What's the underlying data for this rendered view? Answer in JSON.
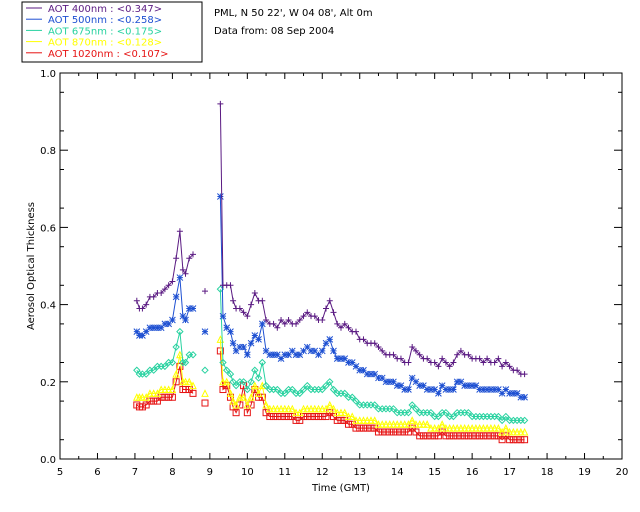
{
  "colors": {
    "axes": "#000000",
    "background": "#ffffff"
  },
  "info": {
    "line1": "PML, N 50 22', W 04 08', Alt 0m",
    "line2": "Data from: 08 Sep 2004"
  },
  "chart_data": {
    "type": "line",
    "title": "",
    "xlabel": "Time (GMT)",
    "ylabel": "Aerosol Optical Thickness",
    "xlim": [
      5,
      20
    ],
    "ylim": [
      0.0,
      1.0
    ],
    "xticks": [
      "5",
      "6",
      "7",
      "8",
      "9",
      "10",
      "11",
      "12",
      "13",
      "14",
      "15",
      "16",
      "17",
      "18",
      "19",
      "20"
    ],
    "yticks": [
      "0.0",
      "0.2",
      "0.4",
      "0.6",
      "0.8",
      "1.0"
    ],
    "grid": false,
    "legend_position": "top-left",
    "series": [
      {
        "name": "AOT  400nm : <0.347>",
        "color": "#5a1a82",
        "marker": "plus",
        "x": [
          7.05,
          7.12,
          7.2,
          7.3,
          7.4,
          7.5,
          7.6,
          7.7,
          7.8,
          7.9,
          8.0,
          8.1,
          8.2,
          8.28,
          8.35,
          8.45,
          8.55,
          8.87,
          9.28,
          9.35,
          9.45,
          9.55,
          9.62,
          9.7,
          9.8,
          9.9,
          10.0,
          10.1,
          10.2,
          10.3,
          10.4,
          10.5,
          10.6,
          10.7,
          10.8,
          10.9,
          11.0,
          11.1,
          11.2,
          11.3,
          11.4,
          11.5,
          11.6,
          11.7,
          11.8,
          11.9,
          12.0,
          12.1,
          12.2,
          12.3,
          12.4,
          12.5,
          12.6,
          12.7,
          12.8,
          12.9,
          13.0,
          13.1,
          13.2,
          13.3,
          13.4,
          13.5,
          13.6,
          13.7,
          13.8,
          13.9,
          14.0,
          14.1,
          14.2,
          14.3,
          14.4,
          14.5,
          14.6,
          14.7,
          14.8,
          14.9,
          15.0,
          15.1,
          15.2,
          15.3,
          15.4,
          15.5,
          15.6,
          15.7,
          15.8,
          15.9,
          16.0,
          16.1,
          16.2,
          16.3,
          16.4,
          16.5,
          16.6,
          16.7,
          16.8,
          16.9,
          17.0,
          17.1,
          17.2,
          17.3,
          17.4
        ],
        "y": [
          0.41,
          0.39,
          0.39,
          0.4,
          0.42,
          0.42,
          0.43,
          0.43,
          0.44,
          0.45,
          0.46,
          0.52,
          0.59,
          0.49,
          0.48,
          0.52,
          0.53,
          0.435,
          0.92,
          0.45,
          0.45,
          0.45,
          0.41,
          0.39,
          0.39,
          0.38,
          0.37,
          0.4,
          0.43,
          0.41,
          0.41,
          0.36,
          0.35,
          0.35,
          0.34,
          0.36,
          0.35,
          0.36,
          0.35,
          0.35,
          0.36,
          0.37,
          0.38,
          0.37,
          0.37,
          0.36,
          0.36,
          0.39,
          0.41,
          0.38,
          0.35,
          0.34,
          0.35,
          0.34,
          0.33,
          0.33,
          0.31,
          0.31,
          0.3,
          0.3,
          0.3,
          0.29,
          0.28,
          0.27,
          0.27,
          0.27,
          0.26,
          0.26,
          0.25,
          0.25,
          0.29,
          0.28,
          0.27,
          0.26,
          0.26,
          0.25,
          0.25,
          0.24,
          0.26,
          0.25,
          0.24,
          0.25,
          0.27,
          0.28,
          0.27,
          0.27,
          0.26,
          0.26,
          0.26,
          0.25,
          0.26,
          0.25,
          0.25,
          0.26,
          0.24,
          0.25,
          0.24,
          0.23,
          0.23,
          0.22,
          0.22
        ]
      },
      {
        "name": "AOT  500nm : <0.258>",
        "color": "#1e50d2",
        "marker": "asterisk",
        "x": [
          7.05,
          7.12,
          7.2,
          7.3,
          7.4,
          7.5,
          7.6,
          7.7,
          7.8,
          7.9,
          8.0,
          8.1,
          8.2,
          8.28,
          8.35,
          8.45,
          8.55,
          8.87,
          9.28,
          9.35,
          9.45,
          9.55,
          9.62,
          9.7,
          9.8,
          9.9,
          10.0,
          10.1,
          10.2,
          10.3,
          10.4,
          10.5,
          10.6,
          10.7,
          10.8,
          10.9,
          11.0,
          11.1,
          11.2,
          11.3,
          11.4,
          11.5,
          11.6,
          11.7,
          11.8,
          11.9,
          12.0,
          12.1,
          12.2,
          12.3,
          12.4,
          12.5,
          12.6,
          12.7,
          12.8,
          12.9,
          13.0,
          13.1,
          13.2,
          13.3,
          13.4,
          13.5,
          13.6,
          13.7,
          13.8,
          13.9,
          14.0,
          14.1,
          14.2,
          14.3,
          14.4,
          14.5,
          14.6,
          14.7,
          14.8,
          14.9,
          15.0,
          15.1,
          15.2,
          15.3,
          15.4,
          15.5,
          15.6,
          15.7,
          15.8,
          15.9,
          16.0,
          16.1,
          16.2,
          16.3,
          16.4,
          16.5,
          16.6,
          16.7,
          16.8,
          16.9,
          17.0,
          17.1,
          17.2,
          17.3,
          17.4
        ],
        "y": [
          0.33,
          0.32,
          0.32,
          0.33,
          0.34,
          0.34,
          0.34,
          0.34,
          0.35,
          0.35,
          0.36,
          0.42,
          0.47,
          0.37,
          0.36,
          0.39,
          0.39,
          0.33,
          0.68,
          0.37,
          0.34,
          0.33,
          0.3,
          0.28,
          0.29,
          0.29,
          0.27,
          0.3,
          0.32,
          0.31,
          0.35,
          0.28,
          0.27,
          0.27,
          0.27,
          0.26,
          0.27,
          0.27,
          0.28,
          0.27,
          0.27,
          0.28,
          0.29,
          0.28,
          0.28,
          0.27,
          0.28,
          0.3,
          0.31,
          0.28,
          0.26,
          0.26,
          0.26,
          0.25,
          0.25,
          0.24,
          0.23,
          0.23,
          0.22,
          0.22,
          0.22,
          0.21,
          0.21,
          0.2,
          0.2,
          0.2,
          0.19,
          0.19,
          0.18,
          0.18,
          0.21,
          0.2,
          0.19,
          0.19,
          0.18,
          0.18,
          0.18,
          0.17,
          0.19,
          0.18,
          0.18,
          0.18,
          0.2,
          0.2,
          0.19,
          0.19,
          0.19,
          0.19,
          0.18,
          0.18,
          0.18,
          0.18,
          0.18,
          0.18,
          0.17,
          0.18,
          0.17,
          0.17,
          0.17,
          0.16,
          0.16
        ]
      },
      {
        "name": "AOT  675nm : <0.175>",
        "color": "#28d2a0",
        "marker": "diamond",
        "x": [
          7.05,
          7.12,
          7.2,
          7.3,
          7.4,
          7.5,
          7.6,
          7.7,
          7.8,
          7.9,
          8.0,
          8.1,
          8.2,
          8.28,
          8.35,
          8.45,
          8.55,
          8.87,
          9.28,
          9.35,
          9.45,
          9.55,
          9.62,
          9.7,
          9.8,
          9.9,
          10.0,
          10.1,
          10.2,
          10.3,
          10.4,
          10.5,
          10.6,
          10.7,
          10.8,
          10.9,
          11.0,
          11.1,
          11.2,
          11.3,
          11.4,
          11.5,
          11.6,
          11.7,
          11.8,
          11.9,
          12.0,
          12.1,
          12.2,
          12.3,
          12.4,
          12.5,
          12.6,
          12.7,
          12.8,
          12.9,
          13.0,
          13.1,
          13.2,
          13.3,
          13.4,
          13.5,
          13.6,
          13.7,
          13.8,
          13.9,
          14.0,
          14.1,
          14.2,
          14.3,
          14.4,
          14.5,
          14.6,
          14.7,
          14.8,
          14.9,
          15.0,
          15.1,
          15.2,
          15.3,
          15.4,
          15.5,
          15.6,
          15.7,
          15.8,
          15.9,
          16.0,
          16.1,
          16.2,
          16.3,
          16.4,
          16.5,
          16.6,
          16.7,
          16.8,
          16.9,
          17.0,
          17.1,
          17.2,
          17.3,
          17.4
        ],
        "y": [
          0.23,
          0.22,
          0.22,
          0.22,
          0.23,
          0.23,
          0.24,
          0.24,
          0.24,
          0.25,
          0.25,
          0.29,
          0.33,
          0.25,
          0.25,
          0.27,
          0.27,
          0.23,
          0.44,
          0.25,
          0.23,
          0.22,
          0.2,
          0.19,
          0.2,
          0.2,
          0.18,
          0.2,
          0.23,
          0.21,
          0.25,
          0.19,
          0.18,
          0.18,
          0.18,
          0.17,
          0.17,
          0.18,
          0.18,
          0.17,
          0.17,
          0.18,
          0.19,
          0.18,
          0.18,
          0.18,
          0.18,
          0.19,
          0.2,
          0.18,
          0.17,
          0.17,
          0.17,
          0.16,
          0.16,
          0.15,
          0.14,
          0.14,
          0.14,
          0.14,
          0.14,
          0.13,
          0.13,
          0.13,
          0.13,
          0.13,
          0.12,
          0.12,
          0.12,
          0.12,
          0.14,
          0.13,
          0.12,
          0.12,
          0.12,
          0.12,
          0.11,
          0.11,
          0.12,
          0.12,
          0.11,
          0.11,
          0.12,
          0.12,
          0.12,
          0.12,
          0.11,
          0.11,
          0.11,
          0.11,
          0.11,
          0.11,
          0.11,
          0.11,
          0.1,
          0.11,
          0.1,
          0.1,
          0.1,
          0.1,
          0.1
        ]
      },
      {
        "name": "AOT  870nm : <0.128>",
        "color": "#ffff00",
        "marker": "triangle",
        "x": [
          7.05,
          7.12,
          7.2,
          7.3,
          7.4,
          7.5,
          7.6,
          7.7,
          7.8,
          7.9,
          8.0,
          8.1,
          8.2,
          8.28,
          8.35,
          8.45,
          8.55,
          8.87,
          9.28,
          9.35,
          9.45,
          9.55,
          9.62,
          9.7,
          9.8,
          9.9,
          10.0,
          10.1,
          10.2,
          10.3,
          10.4,
          10.5,
          10.6,
          10.7,
          10.8,
          10.9,
          11.0,
          11.1,
          11.2,
          11.3,
          11.4,
          11.5,
          11.6,
          11.7,
          11.8,
          11.9,
          12.0,
          12.1,
          12.2,
          12.3,
          12.4,
          12.5,
          12.6,
          12.7,
          12.8,
          12.9,
          13.0,
          13.1,
          13.2,
          13.3,
          13.4,
          13.5,
          13.6,
          13.7,
          13.8,
          13.9,
          14.0,
          14.1,
          14.2,
          14.3,
          14.4,
          14.5,
          14.6,
          14.7,
          14.8,
          14.9,
          15.0,
          15.1,
          15.2,
          15.3,
          15.4,
          15.5,
          15.6,
          15.7,
          15.8,
          15.9,
          16.0,
          16.1,
          16.2,
          16.3,
          16.4,
          16.5,
          16.6,
          16.7,
          16.8,
          16.9,
          17.0,
          17.1,
          17.2,
          17.3,
          17.4
        ],
        "y": [
          0.16,
          0.16,
          0.16,
          0.16,
          0.17,
          0.17,
          0.17,
          0.18,
          0.18,
          0.18,
          0.18,
          0.22,
          0.27,
          0.2,
          0.2,
          0.2,
          0.19,
          0.17,
          0.31,
          0.2,
          0.2,
          0.17,
          0.15,
          0.14,
          0.16,
          0.16,
          0.14,
          0.16,
          0.19,
          0.17,
          0.19,
          0.14,
          0.13,
          0.13,
          0.13,
          0.13,
          0.13,
          0.13,
          0.13,
          0.12,
          0.12,
          0.13,
          0.13,
          0.13,
          0.13,
          0.13,
          0.13,
          0.13,
          0.14,
          0.13,
          0.12,
          0.12,
          0.12,
          0.11,
          0.11,
          0.1,
          0.1,
          0.1,
          0.1,
          0.1,
          0.1,
          0.09,
          0.09,
          0.09,
          0.09,
          0.09,
          0.09,
          0.09,
          0.09,
          0.09,
          0.1,
          0.09,
          0.09,
          0.09,
          0.09,
          0.08,
          0.08,
          0.08,
          0.09,
          0.08,
          0.08,
          0.08,
          0.08,
          0.08,
          0.08,
          0.08,
          0.08,
          0.08,
          0.08,
          0.08,
          0.08,
          0.08,
          0.08,
          0.08,
          0.07,
          0.08,
          0.07,
          0.07,
          0.07,
          0.07,
          0.07
        ]
      },
      {
        "name": "AOT 1020nm : <0.107>",
        "color": "#e61414",
        "marker": "square",
        "x": [
          7.05,
          7.12,
          7.2,
          7.3,
          7.4,
          7.5,
          7.6,
          7.7,
          7.8,
          7.9,
          8.0,
          8.1,
          8.2,
          8.28,
          8.35,
          8.45,
          8.55,
          8.87,
          9.28,
          9.35,
          9.45,
          9.55,
          9.62,
          9.7,
          9.8,
          9.9,
          10.0,
          10.1,
          10.2,
          10.3,
          10.4,
          10.5,
          10.6,
          10.7,
          10.8,
          10.9,
          11.0,
          11.1,
          11.2,
          11.3,
          11.4,
          11.5,
          11.6,
          11.7,
          11.8,
          11.9,
          12.0,
          12.1,
          12.2,
          12.3,
          12.4,
          12.5,
          12.6,
          12.7,
          12.8,
          12.9,
          13.0,
          13.1,
          13.2,
          13.3,
          13.4,
          13.5,
          13.6,
          13.7,
          13.8,
          13.9,
          14.0,
          14.1,
          14.2,
          14.3,
          14.4,
          14.5,
          14.6,
          14.7,
          14.8,
          14.9,
          15.0,
          15.1,
          15.2,
          15.3,
          15.4,
          15.5,
          15.6,
          15.7,
          15.8,
          15.9,
          16.0,
          16.1,
          16.2,
          16.3,
          16.4,
          16.5,
          16.6,
          16.7,
          16.8,
          16.9,
          17.0,
          17.1,
          17.2,
          17.3,
          17.4
        ],
        "y": [
          0.14,
          0.135,
          0.135,
          0.14,
          0.15,
          0.15,
          0.15,
          0.16,
          0.16,
          0.16,
          0.16,
          0.2,
          0.24,
          0.18,
          0.18,
          0.18,
          0.17,
          0.145,
          0.28,
          0.18,
          0.19,
          0.16,
          0.135,
          0.12,
          0.14,
          0.19,
          0.12,
          0.14,
          0.18,
          0.16,
          0.16,
          0.12,
          0.11,
          0.11,
          0.11,
          0.11,
          0.11,
          0.11,
          0.11,
          0.1,
          0.1,
          0.11,
          0.11,
          0.11,
          0.11,
          0.11,
          0.11,
          0.11,
          0.12,
          0.11,
          0.1,
          0.1,
          0.1,
          0.09,
          0.09,
          0.08,
          0.08,
          0.08,
          0.08,
          0.08,
          0.08,
          0.07,
          0.07,
          0.07,
          0.07,
          0.07,
          0.07,
          0.07,
          0.07,
          0.07,
          0.08,
          0.07,
          0.06,
          0.06,
          0.06,
          0.06,
          0.06,
          0.06,
          0.07,
          0.06,
          0.06,
          0.06,
          0.06,
          0.06,
          0.06,
          0.06,
          0.06,
          0.06,
          0.06,
          0.06,
          0.06,
          0.06,
          0.06,
          0.06,
          0.05,
          0.06,
          0.05,
          0.05,
          0.05,
          0.05,
          0.05
        ]
      }
    ]
  }
}
